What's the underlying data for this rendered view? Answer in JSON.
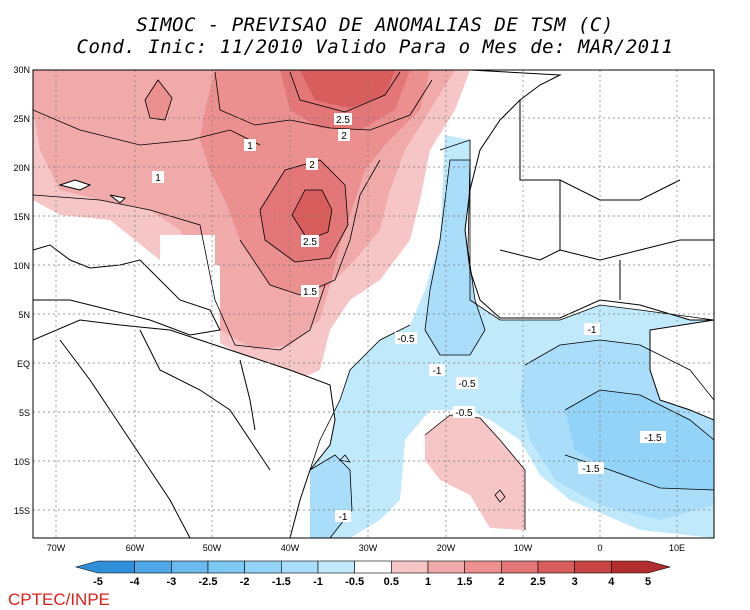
{
  "title_line1": "SIMOC - PREVISAO DE ANOMALIAS DE TSM (C)",
  "title_line2": "Cond. Inic: 11/2010   Valido Para o Mes de: MAR/2011",
  "credit": "CPTEC/INPE",
  "lat_labels": [
    "30N",
    "25N",
    "20N",
    "15N",
    "10N",
    "5N",
    "EQ",
    "5S",
    "10S",
    "15S"
  ],
  "lon_labels": [
    "70W",
    "60W",
    "50W",
    "40W",
    "30W",
    "20W",
    "10W",
    "0",
    "10E"
  ],
  "contour_labels": {
    "p1_a": "1",
    "p1_b": "1",
    "p2_a": "2",
    "p2_b": "2",
    "p2_c": "2.5",
    "p2_d": "2.5",
    "p15": "1.5",
    "m05_a": "-0.5",
    "m05_b": "-0.5",
    "m05_c": "-0.5",
    "m1_a": "-1",
    "m1_b": "-1",
    "m1_c": "-1",
    "m15_a": "-1.5",
    "m15_b": "-1.5"
  },
  "colorbar_labels": [
    "-5",
    "-4",
    "-3",
    "-2.5",
    "-2",
    "-1.5",
    "-1",
    "-0.5",
    "0.5",
    "1",
    "1.5",
    "2",
    "2.5",
    "3",
    "4",
    "5"
  ],
  "colorbar_colors": [
    "#2f8fd8",
    "#4ea7e6",
    "#6bbaee",
    "#7ec8f4",
    "#93d3f7",
    "#a9ddf9",
    "#c1e9fc",
    "#ffffff",
    "#f6c6c6",
    "#f1aaaa",
    "#eb8f8f",
    "#e37676",
    "#d85d5d",
    "#c94444",
    "#b22d2d"
  ],
  "colors": {
    "land": "#ffffff",
    "coast": "#000000",
    "credit": "#e0201b"
  }
}
